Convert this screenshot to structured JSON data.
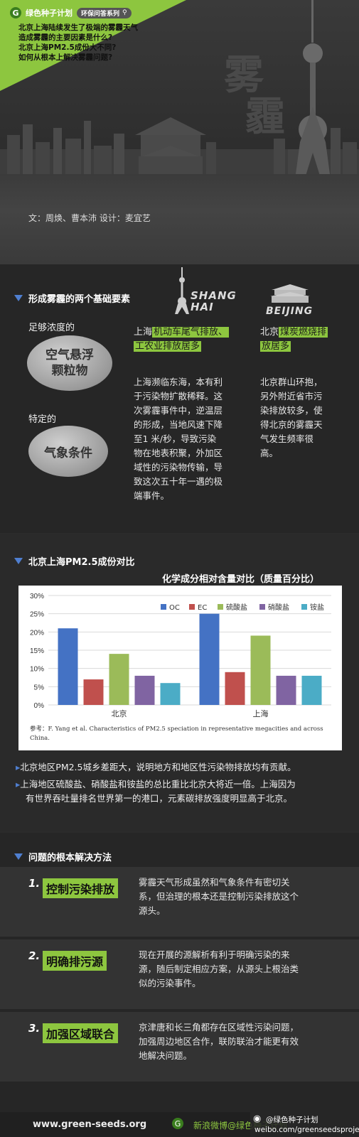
{
  "header": {
    "brand": "绿色种子计划",
    "series": "环保问答系列",
    "questions": [
      "北京上海陆续发生了极端的雾霾天气",
      "造成雾霾的主要因素是什么?",
      "北京上海PM2.5成份大不同?",
      "如何从根本上解决雾霾问题?"
    ],
    "title_chars": [
      "雾",
      "霾"
    ],
    "credit": "文：周焕、曹本沛   设计：麦宜艺"
  },
  "section1": {
    "title": "形成雾霾的两个基础要素",
    "factor1_label": "足够浓度的",
    "factor1_stone": [
      "空气悬浮",
      "颗粒物"
    ],
    "factor2_label": "特定的",
    "factor2_stone": "气象条件",
    "shanghai_label": [
      "SHANG",
      "HAI"
    ],
    "beijing_label": "BEIJING",
    "shanghai_head_a": "上海",
    "shanghai_head_b": "机动车尾气排放、",
    "shanghai_head_c": "工农业排放居多",
    "shanghai_body": [
      "上海濒临东海，本有利",
      "于污染物扩散稀释。这",
      "次雾霾事件中，逆温层",
      "的形成，当地风速下降",
      "至1 米/秒，导致污染",
      "物在地表积聚，外加区",
      "域性的污染物传输，导",
      "致这次五十年一遇的极",
      "端事件。"
    ],
    "beijing_head_a": "北京",
    "beijing_head_b": "煤炭燃烧排",
    "beijing_head_c": "放居多",
    "beijing_body": [
      "北京群山环抱，",
      "另外附近省市污",
      "染排放较多，使",
      "得北京的雾霾天",
      "气发生频率很",
      "高。"
    ]
  },
  "section2": {
    "title": "北京上海PM2.5成份对比",
    "chart_title": "化学成分相对含量对比（质量百分比）",
    "reference": [
      "参考：F. Yang et al. Characteristics of PM2.5 speciation in representative megacities and across",
      "China."
    ],
    "bullets": [
      [
        "北京地区PM2.5城乡差距大，说明地方和地区性污染物排放均有贡献。"
      ],
      [
        "上海地区硫酸盐、硝酸盐和铵盐的总比重比北京大将近一倍。上海因为",
        "有世界吞吐量排名世界第一的港口，元素碳排放强度明显高于北京。"
      ]
    ]
  },
  "chart_data": {
    "type": "bar",
    "title": "化学成分相对含量对比（质量百分比）",
    "categories": [
      "北京",
      "上海"
    ],
    "series": [
      {
        "name": "OC",
        "color": "#4472c4",
        "values": [
          21,
          25
        ]
      },
      {
        "name": "EC",
        "color": "#c0504d",
        "values": [
          7,
          9
        ]
      },
      {
        "name": "硫酸盐",
        "color": "#9bbb59",
        "values": [
          14,
          19
        ]
      },
      {
        "name": "硝酸盐",
        "color": "#8064a2",
        "values": [
          8,
          8
        ]
      },
      {
        "name": "铵盐",
        "color": "#4bacc6",
        "values": [
          6,
          8
        ]
      }
    ],
    "yticks": [
      "0%",
      "5%",
      "10%",
      "15%",
      "20%",
      "25%",
      "30%"
    ],
    "ylim": [
      0,
      30
    ],
    "legend": "top-right",
    "grid": true
  },
  "section3": {
    "title": "问题的根本解决方法",
    "items": [
      {
        "num": "1.",
        "label": "控制污染排放",
        "text": [
          "雾霾天气形成虽然和气象条件有密切关",
          "系，但治理的根本还是控制污染排放这个",
          "源头。"
        ]
      },
      {
        "num": "2.",
        "label": "明确排污源",
        "text": [
          "现在开展的源解析有利于明确污染的来",
          "源，随后制定相应方案，从源头上根治类",
          "似的污染事件。"
        ]
      },
      {
        "num": "3.",
        "label": "加强区域联合",
        "text": [
          "京津唐和长三角都存在区域性污染问题，",
          "加强周边地区合作，联防联治才能更有效",
          "地解决问题。"
        ]
      }
    ]
  },
  "footer": {
    "site": "www.green-seeds.org",
    "slogan": "新浪微博@绿色种子计划",
    "weibo_name": "@绿色种子计划",
    "weibo_url": "weibo.com/greenseedsproject"
  }
}
